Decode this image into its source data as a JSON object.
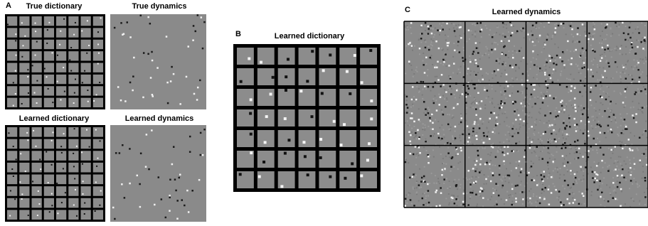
{
  "panel_a": {
    "label": "A",
    "true_dictionary": "True dictionary",
    "true_dynamics": "True dynamics",
    "learned_dictionary": "Learned dictionary",
    "learned_dynamics": "Learned dynamics"
  },
  "panel_b": {
    "label": "B",
    "title": "Learned dictionary"
  },
  "panel_c": {
    "label": "C",
    "title": "Learned dynamics"
  }
}
